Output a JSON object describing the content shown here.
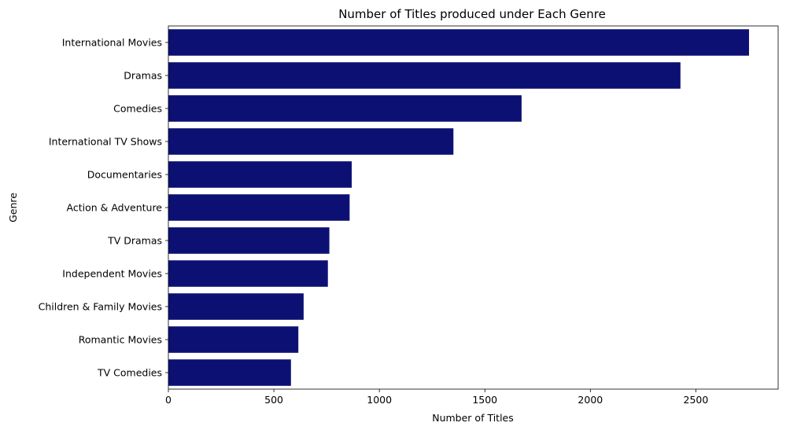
{
  "chart_data": {
    "type": "bar",
    "orientation": "horizontal",
    "title": "Number of Titles produced under Each Genre",
    "xlabel": "Number of Titles",
    "ylabel": "Genre",
    "categories": [
      "International Movies",
      "Dramas",
      "Comedies",
      "International TV Shows",
      "Documentaries",
      "Action & Adventure",
      "TV Dramas",
      "Independent Movies",
      "Children & Family Movies",
      "Romantic Movies",
      "TV Comedies"
    ],
    "values": [
      2752,
      2427,
      1674,
      1351,
      869,
      859,
      763,
      756,
      641,
      616,
      581
    ],
    "xlim": [
      0,
      2890
    ],
    "xticks": [
      0,
      500,
      1000,
      1500,
      2000,
      2500
    ],
    "bar_color": "#0d1073",
    "grid": false,
    "legend": "none"
  }
}
